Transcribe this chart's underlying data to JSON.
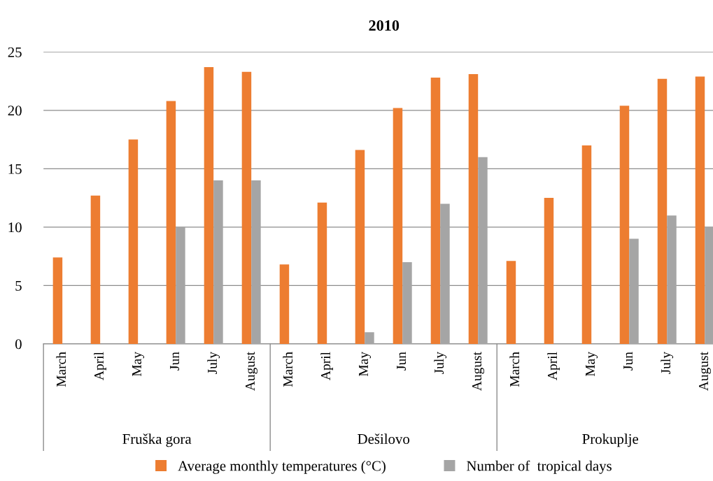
{
  "chart_data": {
    "type": "bar",
    "title": "2010",
    "categories": [
      "March",
      "April",
      "May",
      "Jun",
      "July",
      "August",
      "March",
      "April",
      "May",
      "Jun",
      "July",
      "August",
      "March",
      "April",
      "May",
      "Jun",
      "July",
      "August"
    ],
    "series": [
      {
        "name": "Average monthly temperatures (°C)",
        "color": "#ed7d31",
        "values": [
          7.4,
          12.7,
          17.5,
          20.8,
          23.7,
          23.3,
          6.8,
          12.1,
          16.6,
          20.2,
          22.8,
          23.1,
          7.1,
          12.5,
          17.0,
          20.4,
          22.7,
          22.9
        ]
      },
      {
        "name": "Number of  tropical days",
        "color": "#a5a5a5",
        "values": [
          0,
          0,
          0,
          10,
          14,
          14,
          0,
          0,
          1,
          7,
          12,
          16,
          0,
          0,
          0,
          9,
          11,
          10
        ]
      }
    ],
    "annotations": [
      "Fruška gora",
      "Dešilovo",
      "Prokuplje"
    ],
    "ylim": [
      0,
      25
    ],
    "yticks": [
      0,
      5,
      10,
      15,
      20,
      25
    ],
    "grid": "y",
    "legend": "bottom"
  }
}
